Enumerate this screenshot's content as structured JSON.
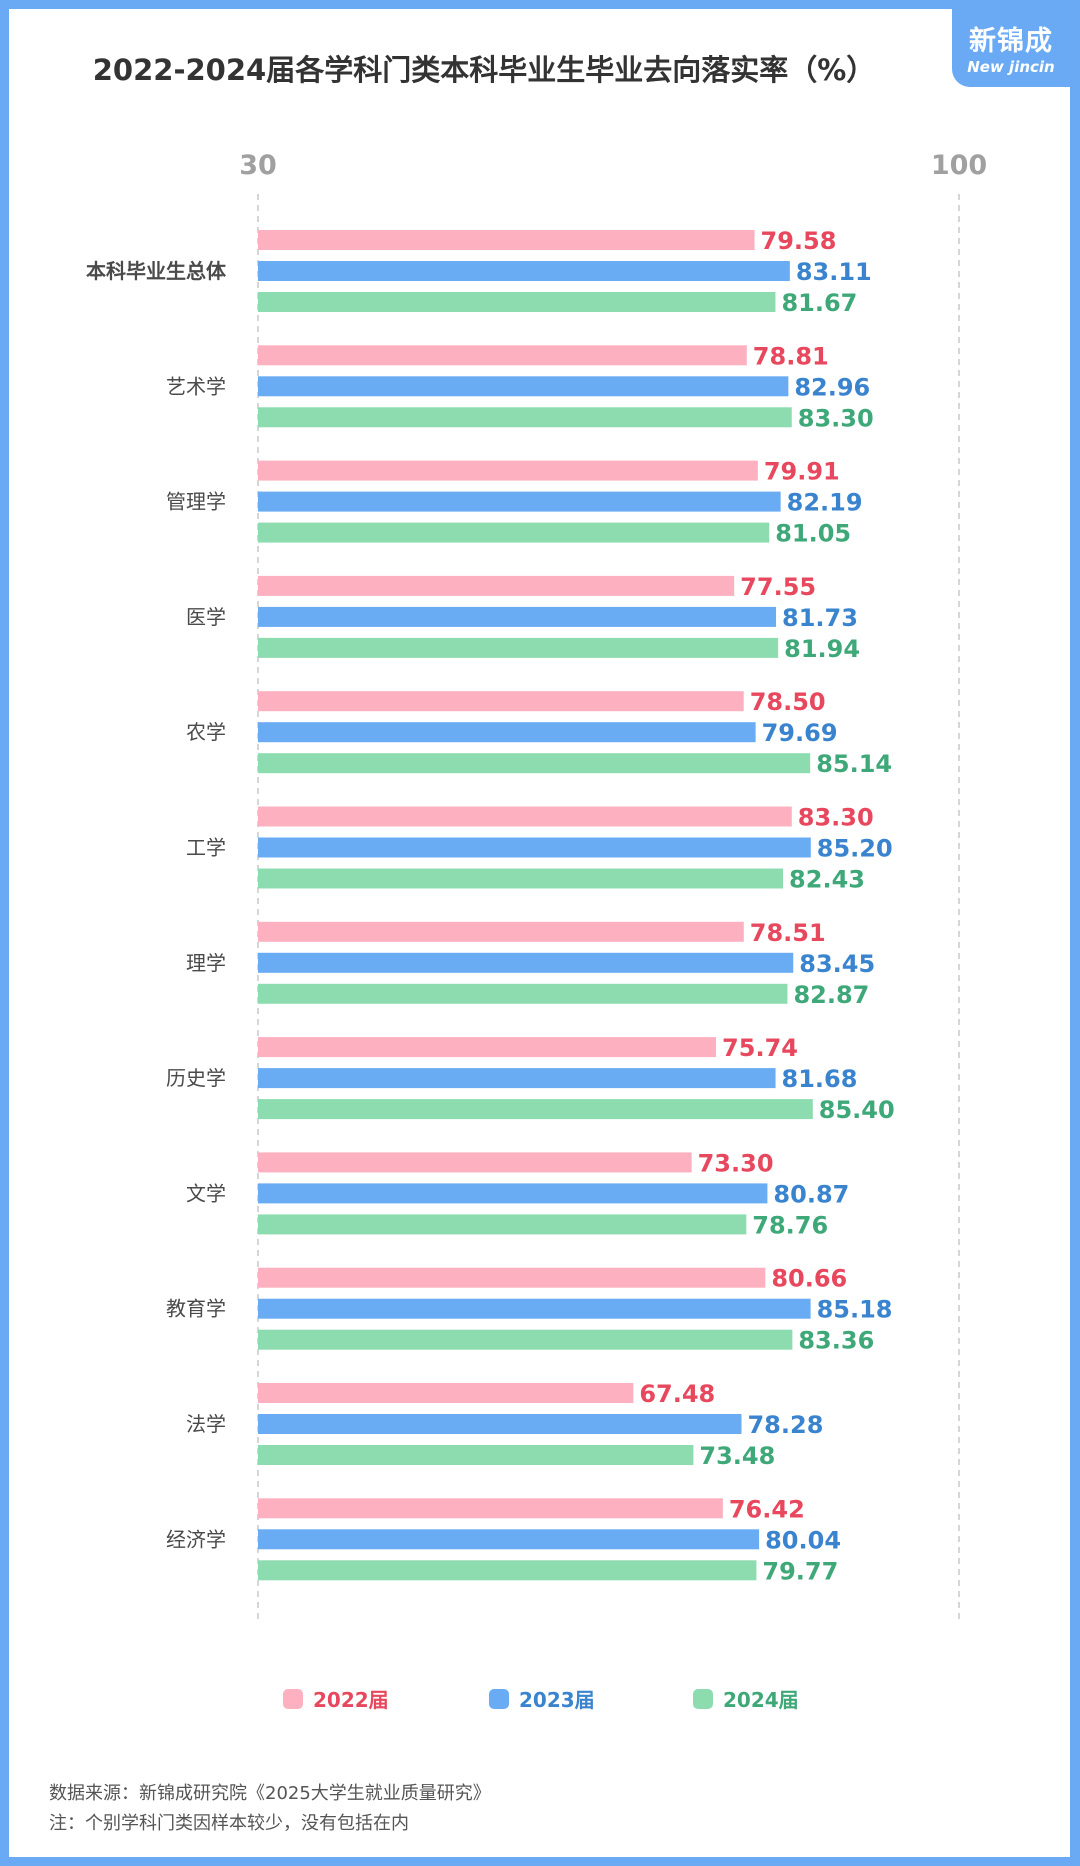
{
  "title": "2022-2024届各学科门类本科毕业生毕业去向落实率（%）",
  "logo": {
    "cn": "新锦成",
    "en": "New jincin"
  },
  "colors": {
    "s2022": "#fdb0bf",
    "s2023": "#69acf4",
    "s2024": "#8ddcb0",
    "t2022": "#e8485d",
    "t2023": "#3a84cf",
    "t2024": "#3ea878"
  },
  "chart_data": {
    "type": "bar",
    "orientation": "horizontal",
    "title": "2022-2024届各学科门类本科毕业生毕业去向落实率（%）",
    "xlim": [
      30,
      100
    ],
    "ticks": [
      "30",
      "100"
    ],
    "categories": [
      "本科毕业生总体",
      "艺术学",
      "管理学",
      "医学",
      "农学",
      "工学",
      "理学",
      "历史学",
      "文学",
      "教育学",
      "法学",
      "经济学"
    ],
    "series": [
      {
        "name": "2022届",
        "values": [
          79.58,
          78.81,
          79.91,
          77.55,
          78.5,
          83.3,
          78.51,
          75.74,
          73.3,
          80.66,
          67.48,
          76.42
        ],
        "labels": [
          "79.58",
          "78.81",
          "79.91",
          "77.55",
          "78.50",
          "83.30",
          "78.51",
          "75.74",
          "73.30",
          "80.66",
          "67.48",
          "76.42"
        ]
      },
      {
        "name": "2023届",
        "values": [
          83.11,
          82.96,
          82.19,
          81.73,
          79.69,
          85.2,
          83.45,
          81.68,
          80.87,
          85.18,
          78.28,
          80.04
        ],
        "labels": [
          "83.11",
          "82.96",
          "82.19",
          "81.73",
          "79.69",
          "85.20",
          "83.45",
          "81.68",
          "80.87",
          "85.18",
          "78.28",
          "80.04"
        ]
      },
      {
        "name": "2024届",
        "values": [
          81.67,
          83.3,
          81.05,
          81.94,
          85.14,
          82.43,
          82.87,
          85.4,
          78.76,
          83.36,
          73.48,
          79.77
        ],
        "labels": [
          "81.67",
          "83.30",
          "81.05",
          "81.94",
          "85.14",
          "82.43",
          "82.87",
          "85.40",
          "78.76",
          "83.36",
          "73.48",
          "79.77"
        ]
      }
    ],
    "legend": [
      "2022届",
      "2023届",
      "2024届"
    ]
  },
  "footer": {
    "source": "数据来源：新锦成研究院《2025大学生就业质量研究》",
    "note": "注：个别学科门类因样本较少，没有包括在内"
  }
}
